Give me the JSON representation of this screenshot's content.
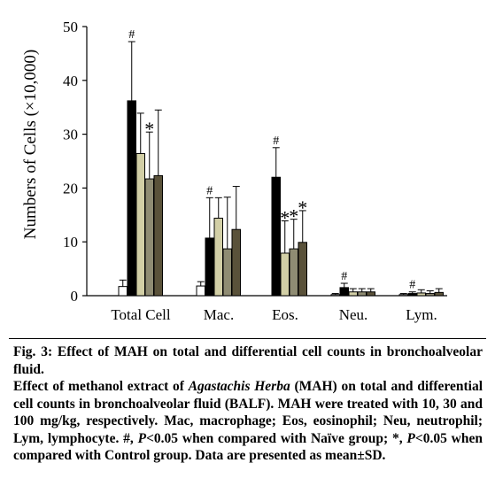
{
  "chart_data": {
    "type": "bar",
    "ylabel": "Numbers of Cells (×10,000)",
    "ylim": [
      0,
      50
    ],
    "yticks": [
      0,
      10,
      20,
      30,
      40,
      50
    ],
    "categories": [
      "Total Cell",
      "Mac.",
      "Eos.",
      "Neu.",
      "Lym."
    ],
    "series": [
      {
        "color": "#ffffff",
        "values": [
          1.7,
          1.8,
          0,
          0.2,
          0.2
        ],
        "errors": [
          1.2,
          0.8,
          0,
          0.2,
          0.2
        ]
      },
      {
        "color": "#000000",
        "values": [
          36.2,
          10.7,
          22.0,
          1.5,
          0.4
        ],
        "errors": [
          11.0,
          7.5,
          5.5,
          0.8,
          0.3
        ]
      },
      {
        "color": "#d2cfa6",
        "values": [
          26.4,
          14.4,
          7.9,
          0.7,
          0.5
        ],
        "errors": [
          7.5,
          3.8,
          6.0,
          0.6,
          0.6
        ]
      },
      {
        "color": "#8f8c73",
        "values": [
          21.7,
          8.7,
          8.7,
          0.7,
          0.4
        ],
        "errors": [
          8.7,
          9.6,
          5.5,
          0.6,
          0.5
        ]
      },
      {
        "color": "#5a523a",
        "values": [
          22.3,
          12.3,
          9.9,
          0.7,
          0.6
        ],
        "errors": [
          12.2,
          8.0,
          5.9,
          0.6,
          0.7
        ]
      }
    ],
    "annotations": [
      {
        "text": "#",
        "category": 0,
        "series": 1
      },
      {
        "text": "*",
        "category": 0,
        "series": 3
      },
      {
        "text": "#",
        "category": 1,
        "series": 1
      },
      {
        "text": "#",
        "category": 2,
        "series": 1
      },
      {
        "text": "*",
        "category": 2,
        "series": 2
      },
      {
        "text": "*",
        "category": 2,
        "series": 3
      },
      {
        "text": "*",
        "category": 2,
        "series": 4
      },
      {
        "text": "#",
        "category": 3,
        "series": 1
      },
      {
        "text": "#",
        "category": 4,
        "series": 1
      }
    ]
  },
  "caption": {
    "title": "Fig. 3: Effect of MAH on total and differential cell counts in bronchoalveolar fluid.",
    "body_1": "Effect of methanol extract of ",
    "body_italic": "Agastachis Herba",
    "body_2": " (MAH) on total and differential cell counts in bronchoalveolar fluid (BALF). MAH were treated with 10, 30 and 100 mg/kg, respectively. Mac, macrophage; Eos, eosinophil; Neu, neutrophil; Lym, lymphocyte. #, ",
    "p_italic_1": "P",
    "body_3": "<0.05 when compared with Naïve group; *, ",
    "p_italic_2": "P",
    "body_4": "<0.05 when compared with Control group. Data are presented as mean±SD."
  }
}
